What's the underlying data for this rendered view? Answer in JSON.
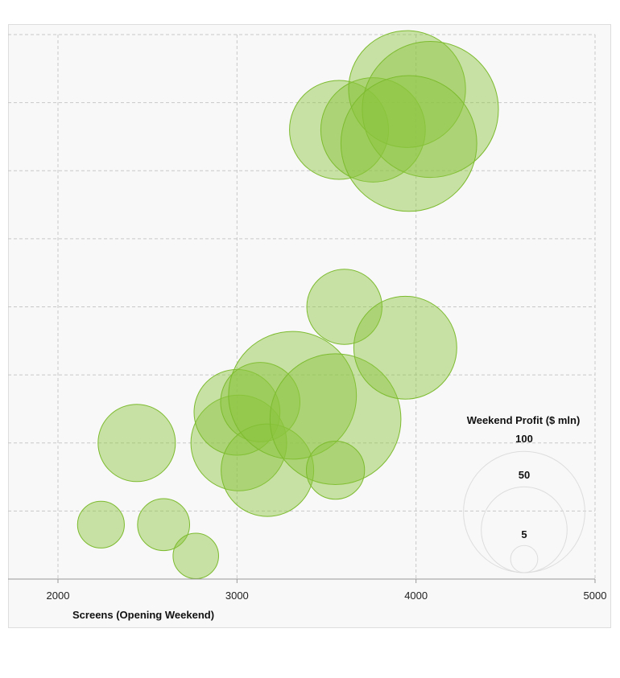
{
  "chart_data": {
    "type": "scatter",
    "variant": "bubble",
    "xlabel": "Screens (Opening Weekend)",
    "ylabel": "",
    "xlim": [
      1720,
      5000
    ],
    "x_ticks": [
      2000,
      3000,
      4000,
      5000
    ],
    "ylim": [
      0,
      8
    ],
    "y_ticks_labeled": false,
    "grid": true,
    "bubble_color": "#8cc63f",
    "size_legend": {
      "title": "Weekend Profit ($ mln)",
      "position": "bottom-right",
      "values": [
        100,
        50,
        5
      ]
    },
    "series": [
      {
        "points": [
          {
            "x": 2240,
            "y": 0.8,
            "size": 5.5
          },
          {
            "x": 2590,
            "y": 0.8,
            "size": 6.8
          },
          {
            "x": 2770,
            "y": 0.34,
            "size": 5.2
          },
          {
            "x": 2440,
            "y": 2.0,
            "size": 15.0
          },
          {
            "x": 3010,
            "y": 2.0,
            "size": 23.0
          },
          {
            "x": 3000,
            "y": 2.45,
            "size": 18.5
          },
          {
            "x": 3130,
            "y": 2.6,
            "size": 15.8
          },
          {
            "x": 3170,
            "y": 1.6,
            "size": 21.5
          },
          {
            "x": 3310,
            "y": 2.7,
            "size": 41.0
          },
          {
            "x": 3550,
            "y": 2.35,
            "size": 43.0
          },
          {
            "x": 3550,
            "y": 1.6,
            "size": 8.5
          },
          {
            "x": 3600,
            "y": 4.0,
            "size": 14.2
          },
          {
            "x": 3940,
            "y": 3.4,
            "size": 26.6
          },
          {
            "x": 3570,
            "y": 6.6,
            "size": 24.6
          },
          {
            "x": 3760,
            "y": 6.6,
            "size": 27.4
          },
          {
            "x": 3950,
            "y": 7.2,
            "size": 34.3
          },
          {
            "x": 4080,
            "y": 6.9,
            "size": 46.5
          },
          {
            "x": 3960,
            "y": 6.4,
            "size": 46.3
          }
        ]
      }
    ]
  }
}
